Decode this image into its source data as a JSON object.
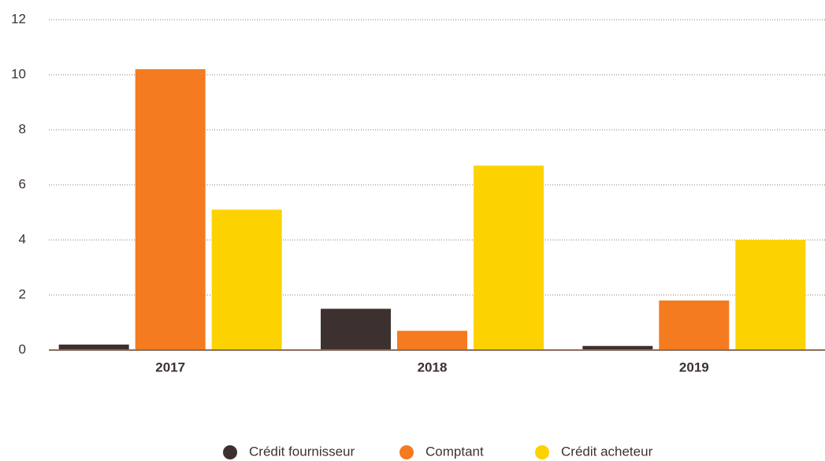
{
  "chart_data": {
    "type": "bar",
    "categories": [
      "2017",
      "2018",
      "2019"
    ],
    "series": [
      {
        "name": "Crédit fournisseur",
        "color": "#3d3130",
        "values": [
          0.2,
          1.5,
          0.15
        ]
      },
      {
        "name": "Comptant",
        "color": "#f47b20",
        "values": [
          10.2,
          0.7,
          1.8
        ]
      },
      {
        "name": "Crédit acheteur",
        "color": "#fcd200",
        "values": [
          5.1,
          6.7,
          4.0
        ]
      }
    ],
    "ylim": [
      0,
      12
    ],
    "yticks": [
      0,
      2,
      4,
      6,
      8,
      10,
      12
    ],
    "grid": true,
    "legend": "bottom"
  }
}
